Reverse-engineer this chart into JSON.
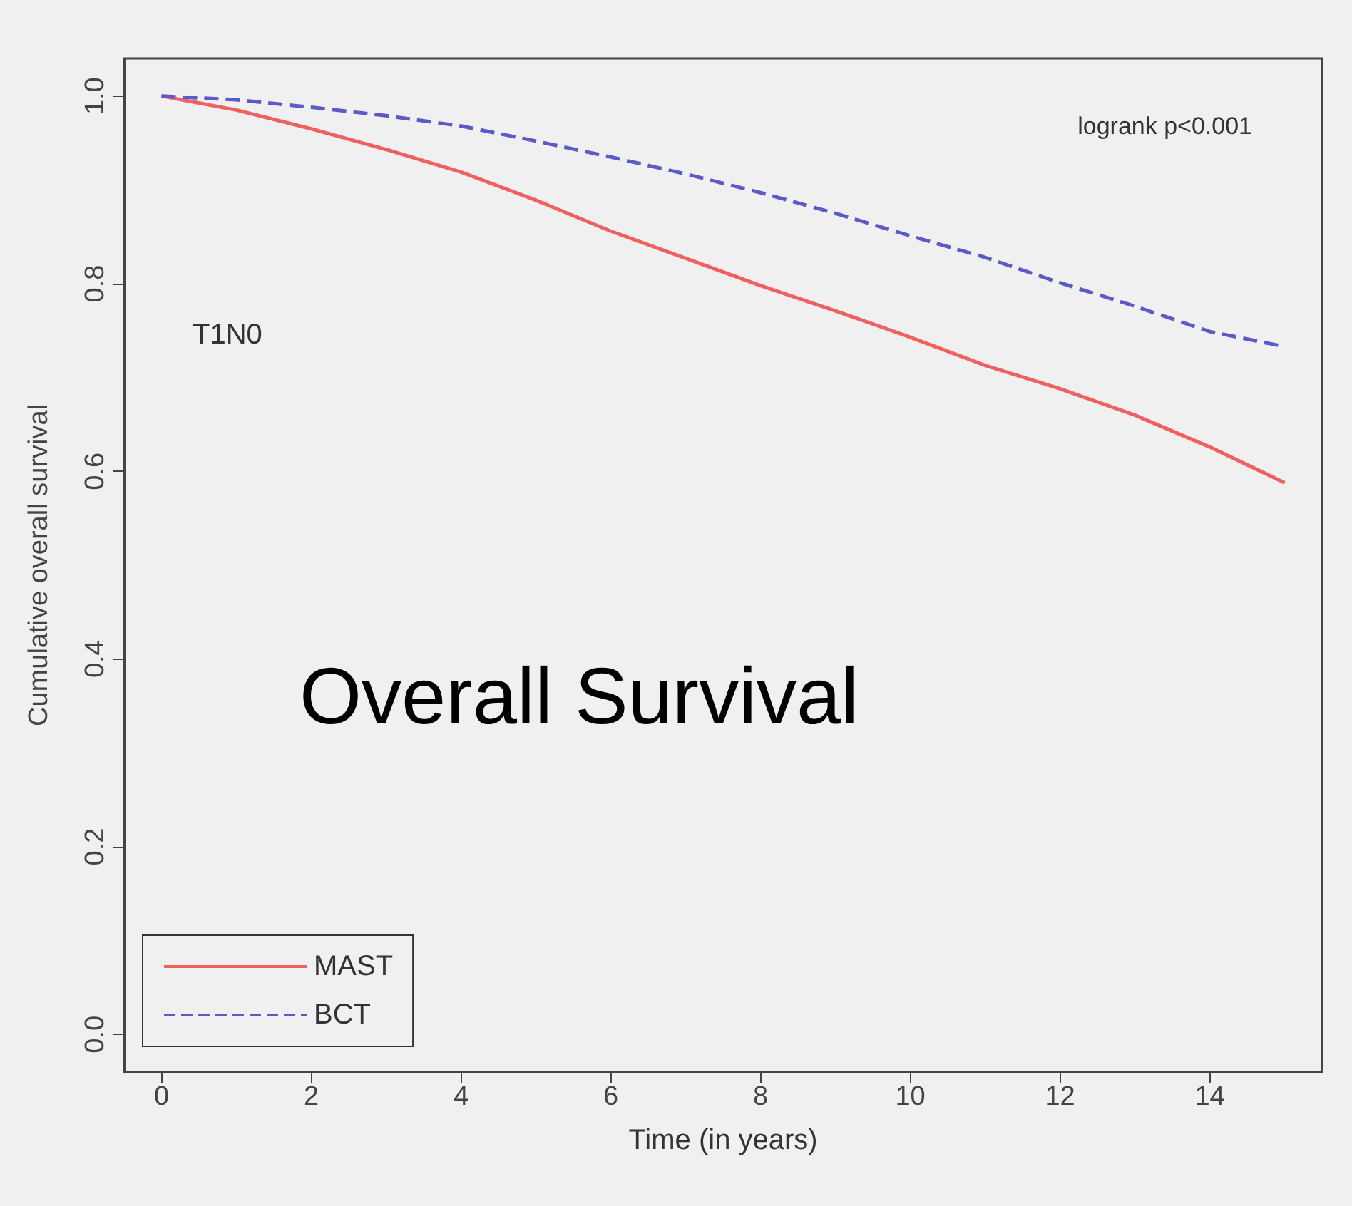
{
  "chart_data": {
    "type": "line",
    "xlabel": "Time (in years)",
    "ylabel": "Cumulative overall survival",
    "annotations": [
      "logrank p<0.001",
      "T1N0",
      "Overall Survival"
    ],
    "x": [
      0,
      1,
      2,
      3,
      4,
      5,
      6,
      7,
      8,
      9,
      10,
      11,
      12,
      13,
      14,
      15
    ],
    "series": [
      {
        "name": "MAST",
        "color": "#f06060",
        "line_style": "solid",
        "values": [
          1.0,
          0.985,
          0.965,
          0.943,
          0.919,
          0.889,
          0.856,
          0.827,
          0.798,
          0.771,
          0.743,
          0.713,
          0.688,
          0.66,
          0.626,
          0.588
        ]
      },
      {
        "name": "BCT",
        "color": "#5a5ac8",
        "line_style": "dashed",
        "values": [
          1.0,
          0.996,
          0.988,
          0.979,
          0.968,
          0.952,
          0.935,
          0.917,
          0.897,
          0.875,
          0.851,
          0.828,
          0.801,
          0.776,
          0.749,
          0.733
        ]
      }
    ],
    "xlim": [
      -0.5,
      15.5
    ],
    "xticks": [
      0,
      2,
      4,
      6,
      8,
      10,
      12,
      14
    ],
    "ylim": [
      -0.04,
      1.04
    ],
    "yticks": [
      {
        "value": 0,
        "label": "0.0"
      },
      0.2,
      0.4,
      0.6,
      0.8,
      {
        "value": 1,
        "label": "1.0"
      }
    ],
    "grid": false,
    "legend": "bottom left",
    "marker": "none"
  }
}
